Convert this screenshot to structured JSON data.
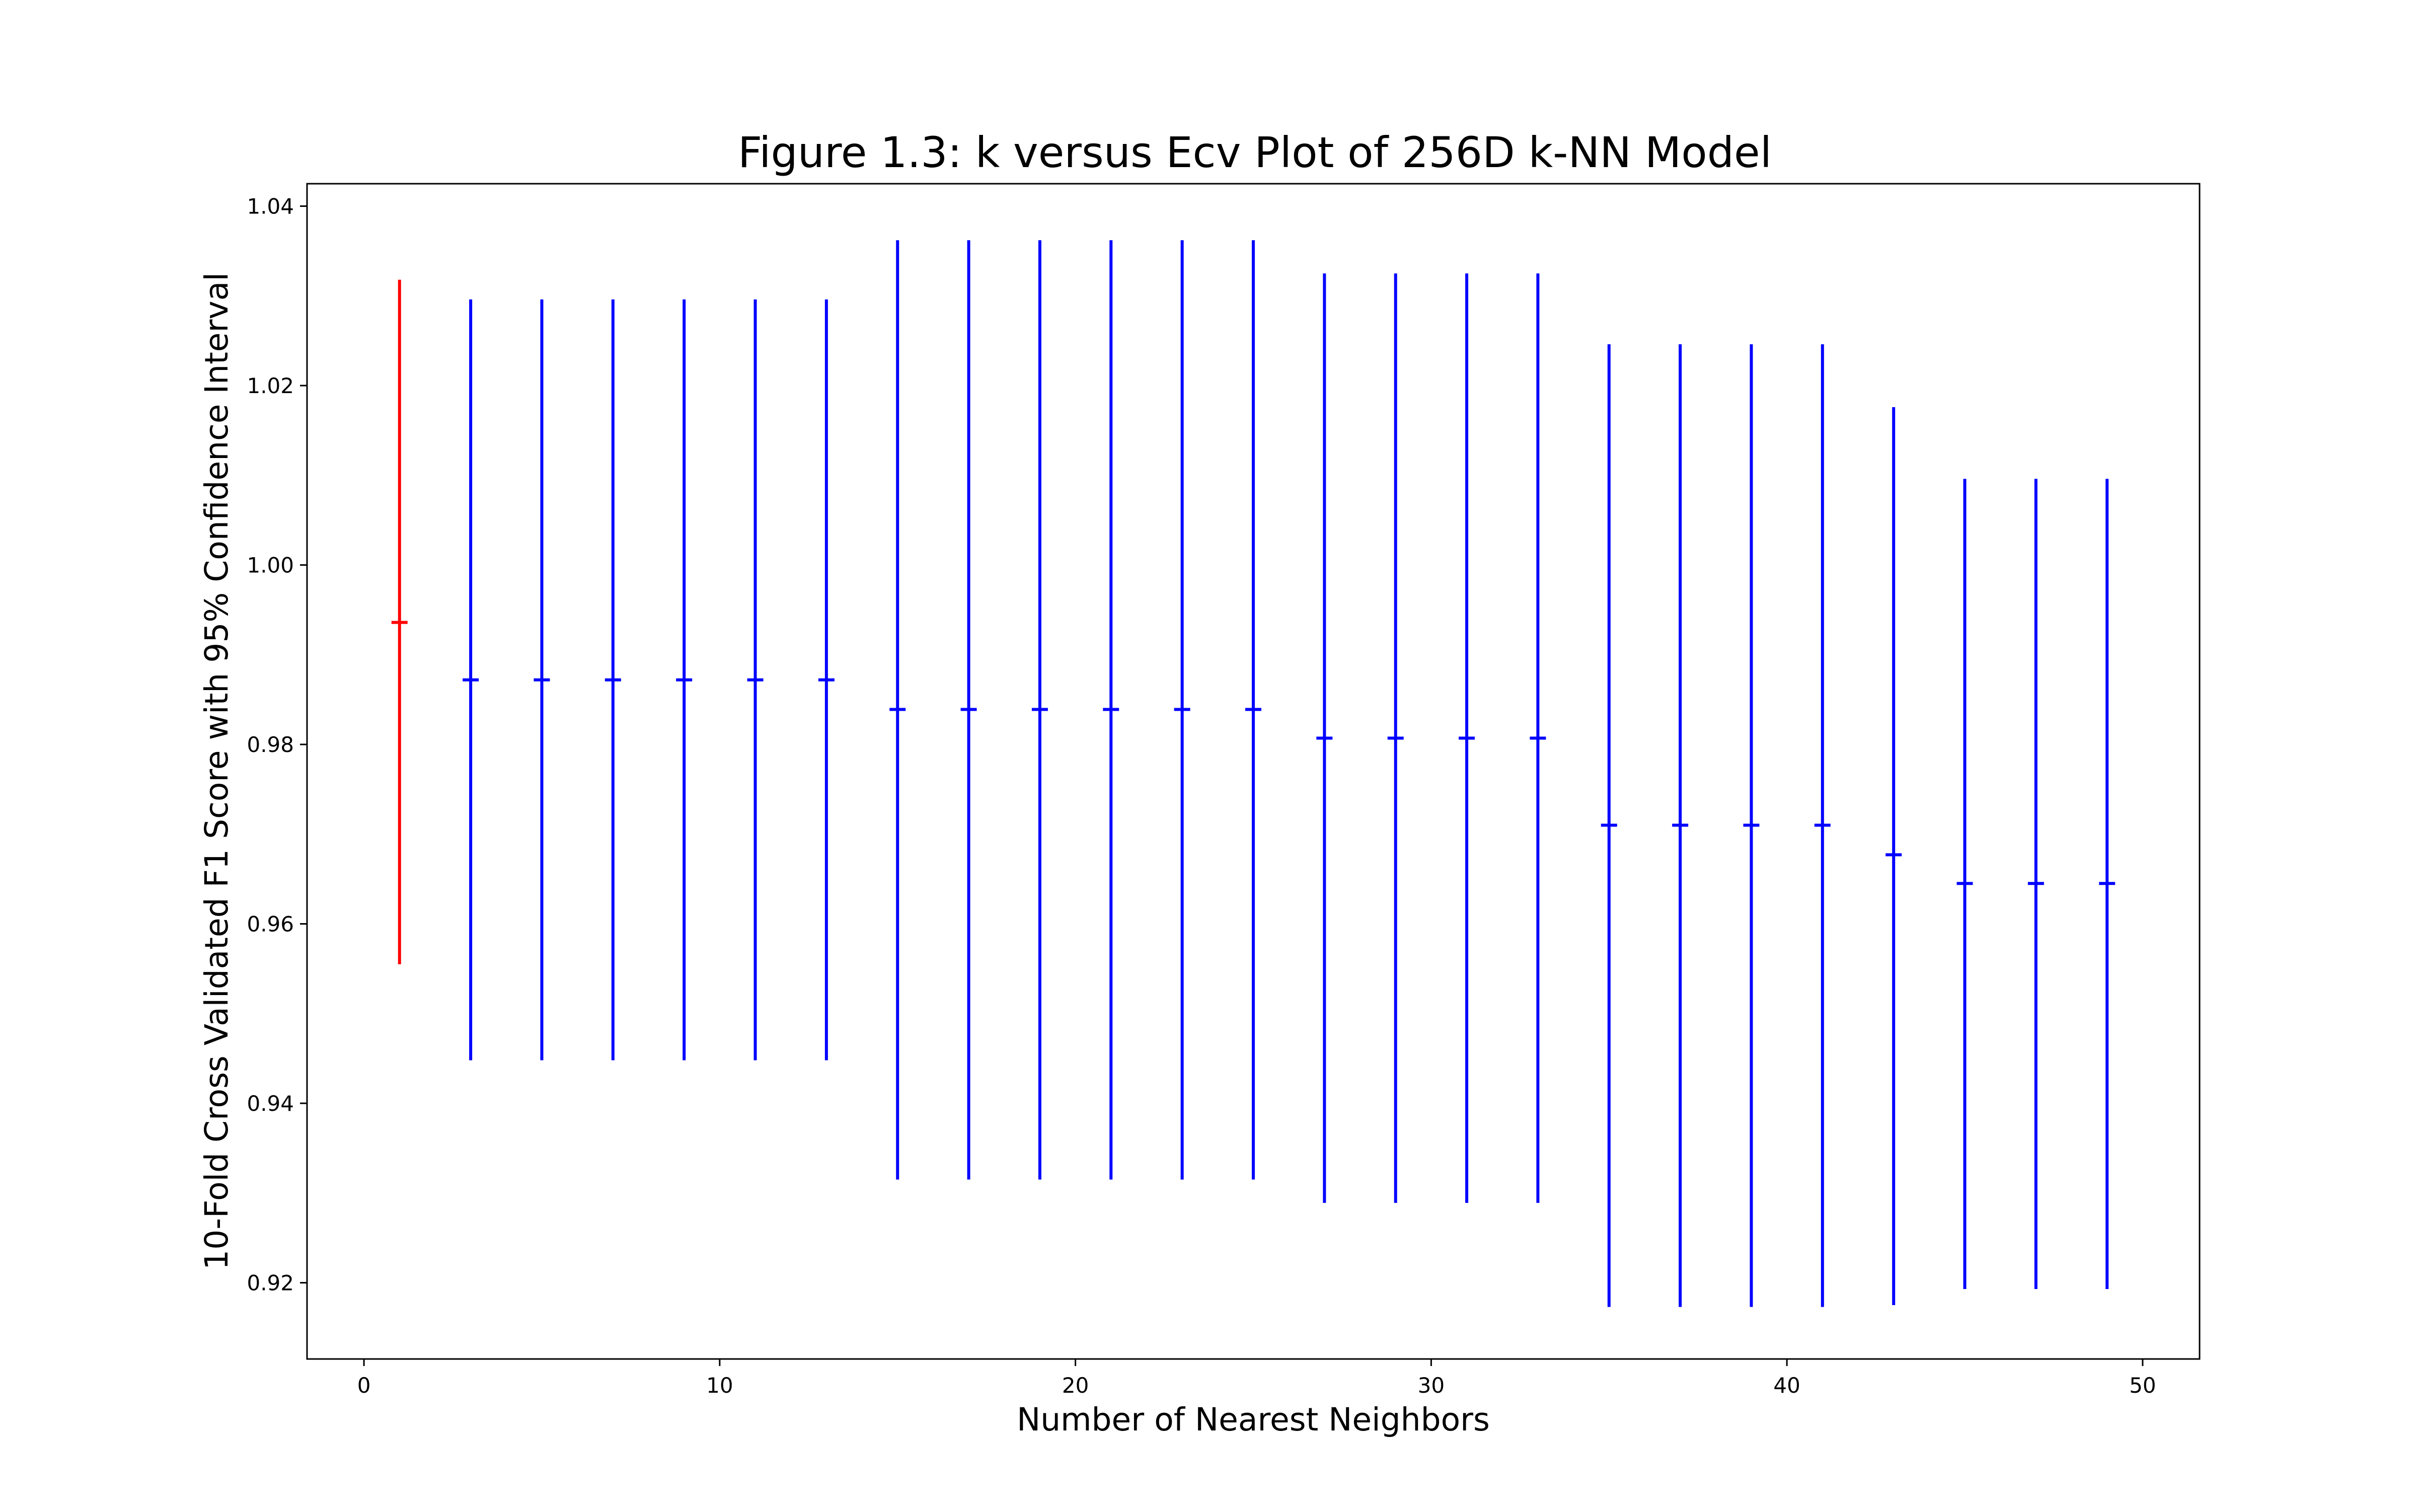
{
  "chart_data": {
    "type": "errorbar",
    "title": "Figure 1.3: k versus Ecv Plot of 256D k-NN Model",
    "xlabel": "Number of Nearest Neighbors",
    "ylabel": "10-Fold Cross Validated F1 Score with 95% Confidence Interval",
    "xlim": [
      -1.6,
      51.6
    ],
    "ylim": [
      0.9115,
      1.0425
    ],
    "xticks": [
      0,
      10,
      20,
      30,
      40,
      50
    ],
    "yticks": [
      0.92,
      0.94,
      0.96,
      0.98,
      1.0,
      1.02,
      1.04
    ],
    "ytick_labels": [
      "0.92",
      "0.94",
      "0.96",
      "0.98",
      "1.00",
      "1.02",
      "1.04"
    ],
    "grid": false,
    "highlight_color": "#ff0000",
    "series_color": "#0000ff",
    "highlight_k": 1,
    "points": [
      {
        "k": 1,
        "mean": 0.9936,
        "low": 0.9555,
        "high": 1.0318
      },
      {
        "k": 3,
        "mean": 0.9872,
        "low": 0.9448,
        "high": 1.0296
      },
      {
        "k": 5,
        "mean": 0.9872,
        "low": 0.9448,
        "high": 1.0296
      },
      {
        "k": 7,
        "mean": 0.9872,
        "low": 0.9448,
        "high": 1.0296
      },
      {
        "k": 9,
        "mean": 0.9872,
        "low": 0.9448,
        "high": 1.0296
      },
      {
        "k": 11,
        "mean": 0.9872,
        "low": 0.9448,
        "high": 1.0296
      },
      {
        "k": 13,
        "mean": 0.9872,
        "low": 0.9448,
        "high": 1.0296
      },
      {
        "k": 15,
        "mean": 0.9839,
        "low": 0.9315,
        "high": 1.0362
      },
      {
        "k": 17,
        "mean": 0.9839,
        "low": 0.9315,
        "high": 1.0362
      },
      {
        "k": 19,
        "mean": 0.9839,
        "low": 0.9315,
        "high": 1.0362
      },
      {
        "k": 21,
        "mean": 0.9839,
        "low": 0.9315,
        "high": 1.0362
      },
      {
        "k": 23,
        "mean": 0.9839,
        "low": 0.9315,
        "high": 1.0362
      },
      {
        "k": 25,
        "mean": 0.9839,
        "low": 0.9315,
        "high": 1.0362
      },
      {
        "k": 27,
        "mean": 0.9807,
        "low": 0.9289,
        "high": 1.0325
      },
      {
        "k": 29,
        "mean": 0.9807,
        "low": 0.9289,
        "high": 1.0325
      },
      {
        "k": 31,
        "mean": 0.9807,
        "low": 0.9289,
        "high": 1.0325
      },
      {
        "k": 33,
        "mean": 0.9807,
        "low": 0.9289,
        "high": 1.0325
      },
      {
        "k": 35,
        "mean": 0.971,
        "low": 0.9173,
        "high": 1.0246
      },
      {
        "k": 37,
        "mean": 0.971,
        "low": 0.9173,
        "high": 1.0246
      },
      {
        "k": 39,
        "mean": 0.971,
        "low": 0.9173,
        "high": 1.0246
      },
      {
        "k": 41,
        "mean": 0.971,
        "low": 0.9173,
        "high": 1.0246
      },
      {
        "k": 43,
        "mean": 0.9677,
        "low": 0.9175,
        "high": 1.0176
      },
      {
        "k": 45,
        "mean": 0.9645,
        "low": 0.9193,
        "high": 1.0096
      },
      {
        "k": 47,
        "mean": 0.9645,
        "low": 0.9193,
        "high": 1.0096
      },
      {
        "k": 49,
        "mean": 0.9645,
        "low": 0.9193,
        "high": 1.0096
      }
    ]
  }
}
